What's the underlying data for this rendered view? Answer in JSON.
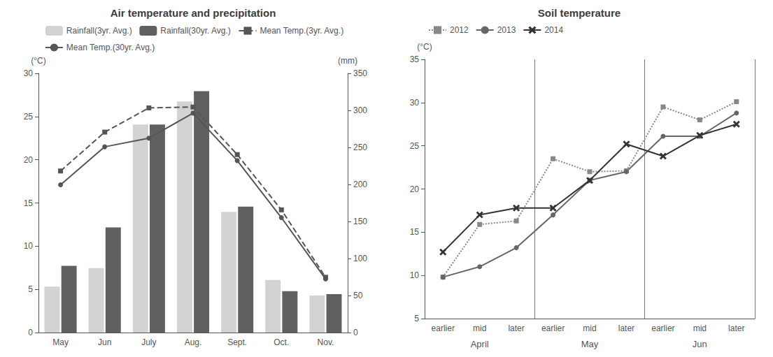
{
  "chart_data": [
    {
      "type": "bar",
      "title": "Air temperature and precipitation",
      "categories": [
        "May",
        "Jun",
        "July",
        "Aug.",
        "Sept.",
        "Oct.",
        "Nov."
      ],
      "series": [
        {
          "name": "Rainfall(3yr. Avg.)",
          "type": "bar",
          "color": "#d3d3d3",
          "axis": "y2",
          "values": [
            62,
            87,
            281,
            312,
            163,
            71,
            50
          ]
        },
        {
          "name": "Rainfall(30yr. Avg.)",
          "type": "bar",
          "color": "#606060",
          "axis": "y2",
          "values": [
            90,
            142,
            281,
            326,
            170,
            56,
            52
          ]
        },
        {
          "name": "Mean Temp.(3yr. Avg.)",
          "type": "line",
          "color": "#555555",
          "line_style": "dashed",
          "marker": "square",
          "values": [
            18.7,
            23.2,
            26.0,
            26.1,
            20.6,
            14.2,
            6.4
          ]
        },
        {
          "name": "Mean Temp.(30yr. Avg.)",
          "type": "line",
          "color": "#555555",
          "line_style": "solid",
          "marker": "circle",
          "values": [
            17.1,
            21.5,
            22.5,
            25.4,
            19.9,
            13.3,
            6.2
          ]
        }
      ],
      "ylabel": "(°C)",
      "y2label": "(mm)",
      "ylim": [
        0,
        30
      ],
      "yticks": [
        0,
        5,
        10,
        15,
        20,
        25,
        30
      ],
      "y2lim": [
        0,
        350
      ],
      "y2ticks": [
        0,
        50,
        100,
        150,
        200,
        250,
        300,
        350
      ],
      "legend": "upper right",
      "grid": false
    },
    {
      "type": "line",
      "title": "Soil temperature",
      "categories": [
        "earlier",
        "mid",
        "later",
        "earlier",
        "mid",
        "later",
        "earlier",
        "mid",
        "later"
      ],
      "x_group_labels": [
        "April",
        "May",
        "Jun"
      ],
      "series": [
        {
          "name": "2012",
          "color": "#888888",
          "line_style": "dotted",
          "marker": "square",
          "values": [
            9.8,
            15.9,
            16.3,
            23.5,
            22.0,
            22.1,
            29.5,
            28.0,
            30.1
          ]
        },
        {
          "name": "2013",
          "color": "#666666",
          "line_style": "solid",
          "marker": "circle",
          "values": [
            9.8,
            11.0,
            13.2,
            17.0,
            21.0,
            22.0,
            26.1,
            26.1,
            28.8
          ]
        },
        {
          "name": "2014",
          "color": "#333333",
          "line_style": "solid",
          "marker": "x",
          "values": [
            12.7,
            17.0,
            17.8,
            17.8,
            21.0,
            25.2,
            23.8,
            26.2,
            27.5
          ]
        }
      ],
      "ylabel": "(°C)",
      "ylim": [
        5,
        35
      ],
      "yticks": [
        5,
        10,
        15,
        20,
        25,
        30,
        35
      ],
      "legend": "upper left",
      "grid": false
    }
  ]
}
